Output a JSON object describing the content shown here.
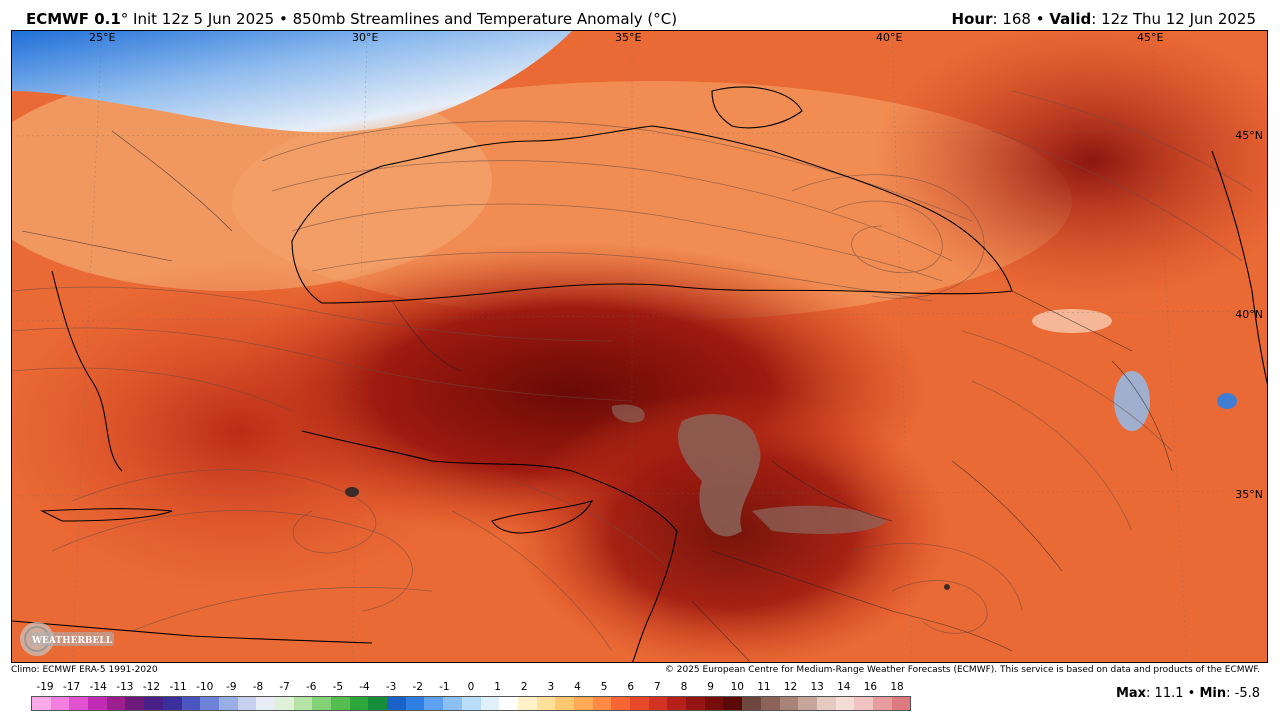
{
  "header": {
    "model": "ECMWF 0.1",
    "degree_sign": "°",
    "init_text": " Init 12z 5 Jun 2025",
    "bullet": " • ",
    "product": "850mb Streamlines and Temperature Anomaly (°C)",
    "hour_label": "Hour",
    "hour_value": ": 168",
    "valid_label": "Valid",
    "valid_value": ": 12z Thu 12 Jun 2025"
  },
  "map": {
    "lon_labels": [
      "25°E",
      "30°E",
      "35°E",
      "40°E",
      "45°E"
    ],
    "lat_labels": [
      "45°N",
      "40°N",
      "35°N"
    ],
    "logo_text": "WEATHERBELL"
  },
  "footer": {
    "climo": "Climo: ECMWF ERA-5 1991-2020",
    "copyright": "© 2025 European Centre for Medium-Range Weather Forecasts (ECMWF). This service is based on data and products of the ECMWF."
  },
  "colorbar": {
    "ticks": [
      "-19",
      "-17",
      "-14",
      "-13",
      "-12",
      "-11",
      "-10",
      "-9",
      "-8",
      "-7",
      "-6",
      "-5",
      "-4",
      "-3",
      "-2",
      "-1",
      "0",
      "1",
      "2",
      "3",
      "4",
      "5",
      "6",
      "7",
      "8",
      "9",
      "10",
      "11",
      "12",
      "13",
      "14",
      "16",
      "18"
    ],
    "colors": [
      "#f9a8e8",
      "#f07fde",
      "#e052d0",
      "#c02cb4",
      "#9b1f8f",
      "#6e1a7a",
      "#4a1f86",
      "#3b2f9c",
      "#4a55c0",
      "#6d82d8",
      "#9aaee6",
      "#c6d0ee",
      "#e8edf6",
      "#dff1d8",
      "#b5e4a6",
      "#84d278",
      "#56bd50",
      "#2ea63c",
      "#178c3a",
      "#1a62c8",
      "#2f7fe2",
      "#5ea1ee",
      "#8cc0f4",
      "#b9dcf8",
      "#e0f0fb",
      "#ffffff",
      "#fff2c9",
      "#ffe09a",
      "#ffc770",
      "#ffab55",
      "#ff8a45",
      "#f76534",
      "#e8482a",
      "#d23322",
      "#b5201b",
      "#951514",
      "#760d0d",
      "#5a0808",
      "#6e4640",
      "#8b6358",
      "#a88377",
      "#c6a59a",
      "#e3c9bf",
      "#f3ded6",
      "#f2c3c3",
      "#e79c9f",
      "#dc7a80"
    ]
  },
  "stats": {
    "max_label": "Max",
    "max_value": ": 11.1",
    "min_label": "Min",
    "min_value": ": -5.8"
  }
}
